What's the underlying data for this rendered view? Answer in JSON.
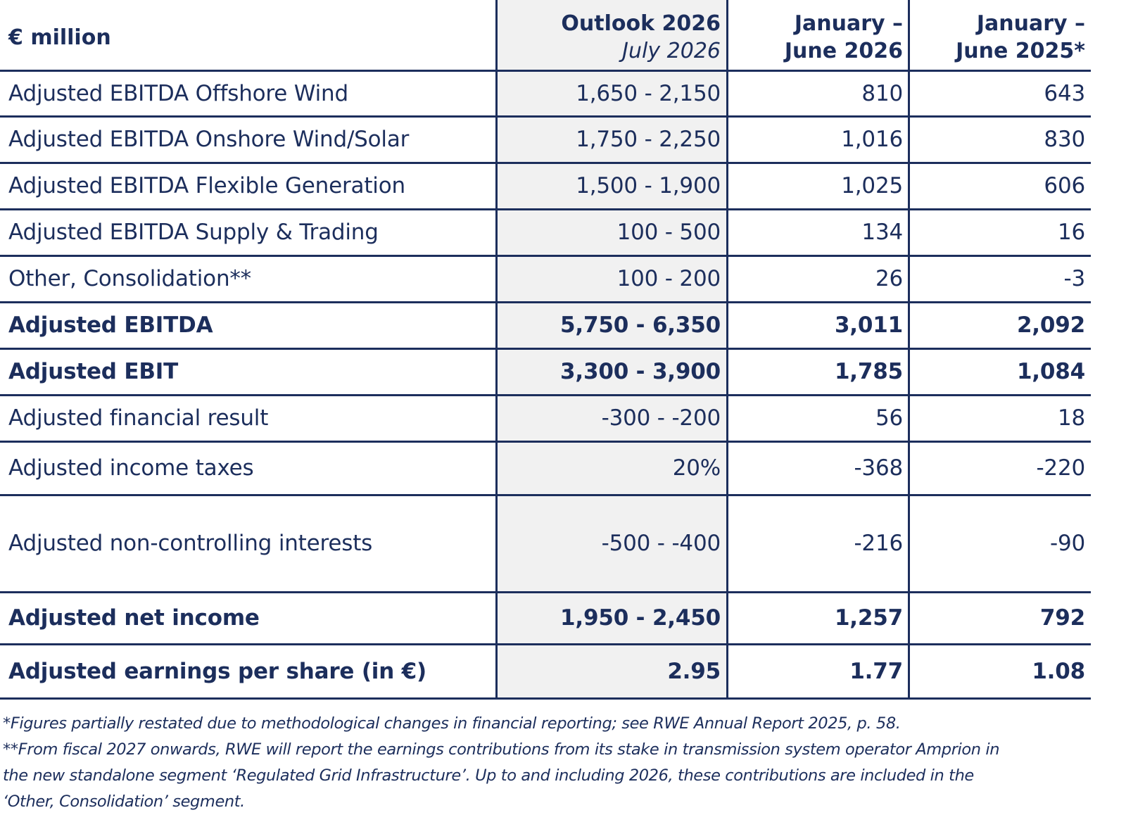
{
  "header": {
    "unit": "€ million",
    "outlook_title": "Outlook 2026",
    "outlook_subtitle": "July 2026",
    "h1_line1": "January –",
    "h1_line2": "June 2026",
    "h2_line1": "January –",
    "h2_line2": "June 2025*"
  },
  "rows": [
    {
      "label": "Adjusted EBITDA Offshore Wind",
      "outlook": "1,650 - 2,150",
      "h1_2026": "810",
      "h1_2025": "643"
    },
    {
      "label": "Adjusted EBITDA Onshore Wind/Solar",
      "outlook": "1,750 - 2,250",
      "h1_2026": "1,016",
      "h1_2025": "830"
    },
    {
      "label": "Adjusted EBITDA Flexible Generation",
      "outlook": "1,500 - 1,900",
      "h1_2026": "1,025",
      "h1_2025": "606"
    },
    {
      "label": "Adjusted EBITDA Supply & Trading",
      "outlook": "100 - 500",
      "h1_2026": "134",
      "h1_2025": "16"
    },
    {
      "label": "Other, Consolidation**",
      "outlook": "100 - 200",
      "h1_2026": "26",
      "h1_2025": "-3"
    },
    {
      "label": "Adjusted EBITDA",
      "outlook": "5,750 - 6,350",
      "h1_2026": "3,011",
      "h1_2025": "2,092"
    },
    {
      "label": "Adjusted EBIT",
      "outlook": "3,300 - 3,900",
      "h1_2026": "1,785",
      "h1_2025": "1,084"
    },
    {
      "label": "Adjusted financial result",
      "outlook": "-300 - -200",
      "h1_2026": "56",
      "h1_2025": "18"
    },
    {
      "label": "Adjusted income taxes",
      "outlook": "20%",
      "h1_2026": "-368",
      "h1_2025": "-220"
    },
    {
      "label": "Adjusted non-controlling interests",
      "outlook": "-500 - -400",
      "h1_2026": "-216",
      "h1_2025": "-90"
    },
    {
      "label": "Adjusted net income",
      "outlook": "1,950 - 2,450",
      "h1_2026": "1,257",
      "h1_2025": "792"
    },
    {
      "label": "Adjusted earnings per share (in €)",
      "outlook": "2.95",
      "h1_2026": "1.77",
      "h1_2025": "1.08"
    }
  ],
  "footnotes": {
    "line1": "*Figures partially restated due to methodological changes in financial reporting; see RWE Annual Report 2025, p. 58.",
    "line2": "**From fiscal 2027 onwards, RWE will report the earnings contributions from its stake in transmission system operator Amprion in",
    "line3": "the new standalone segment ‘Regulated Grid Infrastructure’. Up to and including 2026, these contributions are included in the",
    "line4": "‘Other, Consolidation’ segment."
  },
  "colors": {
    "navy": "#1c2e5c",
    "outlook_shade": "#f1f1f1"
  }
}
